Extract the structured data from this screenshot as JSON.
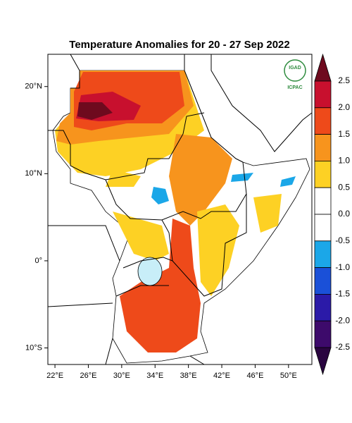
{
  "chart_data": {
    "type": "map",
    "title": "Temperature Anomalies for 20 - 27 Sep 2022",
    "xlim": [
      21.15,
      52.8
    ],
    "ylim": [
      -11.9,
      23.7
    ],
    "xticks": [
      {
        "value": 22,
        "label": "22°E"
      },
      {
        "value": 26,
        "label": "26°E"
      },
      {
        "value": 30,
        "label": "30°E"
      },
      {
        "value": 34,
        "label": "34°E"
      },
      {
        "value": 38,
        "label": "38°E"
      },
      {
        "value": 42,
        "label": "42°E"
      },
      {
        "value": 46,
        "label": "46°E"
      },
      {
        "value": 50,
        "label": "50°E"
      }
    ],
    "yticks": [
      {
        "value": 20,
        "label": "20°N"
      },
      {
        "value": 10,
        "label": "10°N"
      },
      {
        "value": 0,
        "label": "0°"
      },
      {
        "value": -10,
        "label": "10°S"
      }
    ],
    "colorbar": {
      "ticks": [
        2.5,
        {
          "value": 2,
          "label": "2.0"
        },
        1.5,
        {
          "value": 1,
          "label": "1.0"
        },
        0.5,
        {
          "value": 0,
          "label": "0.0"
        },
        -0.5,
        {
          "value": -1,
          "label": "-1.0"
        },
        -1.5,
        {
          "value": -2,
          "label": "-2.0"
        },
        -2.5
      ],
      "colors": [
        "#6e0a1e",
        "#c8102e",
        "#ee4a1a",
        "#f7941d",
        "#fdd124",
        "#ffffff",
        "#ffffff",
        "#1ba7e8",
        "#1a50d8",
        "#2b1aa8",
        "#3d0a6b",
        "#2a0540"
      ]
    },
    "logo": {
      "top": "IGAD",
      "bottom": "ICPAC"
    }
  }
}
